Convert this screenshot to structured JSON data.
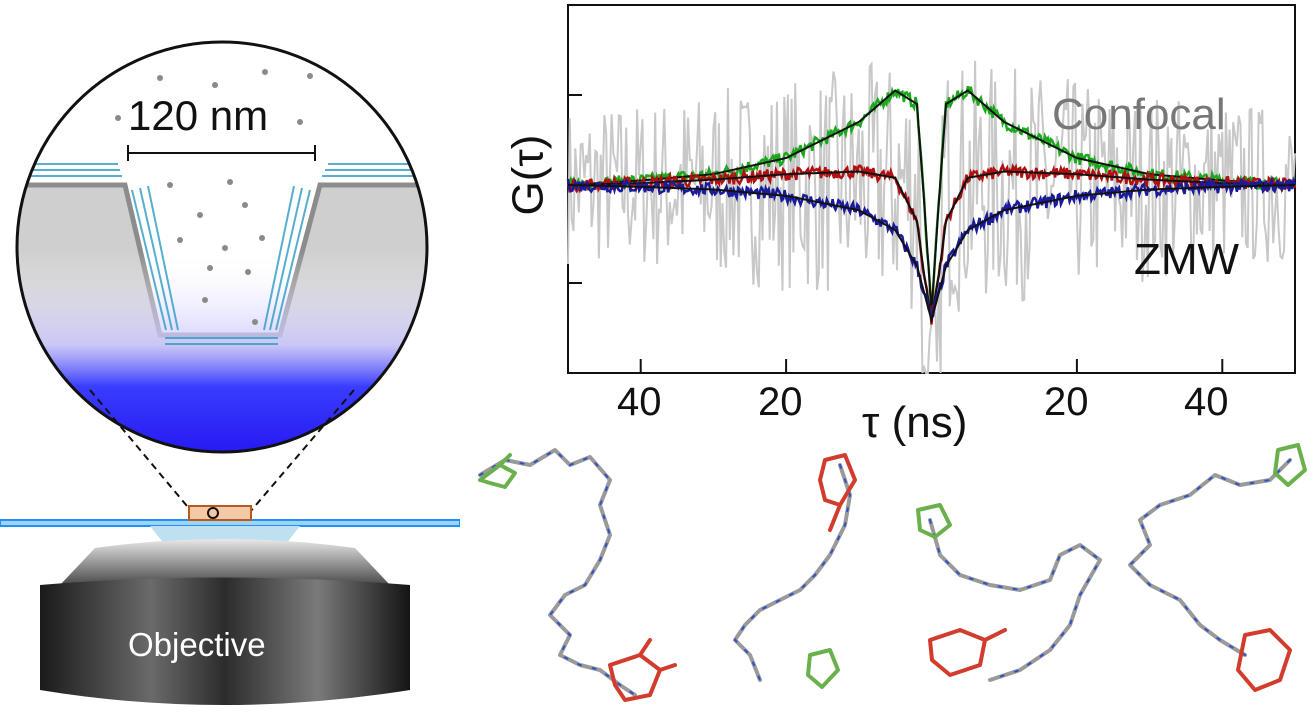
{
  "illustration": {
    "scale_label": "120 nm",
    "objective_label": "Objective",
    "colors": {
      "substrate": "#cfcfcf",
      "polymer_brush": "#3aa0c8",
      "excitation": "#2a1fff",
      "cover_glass": "#1e90ff"
    }
  },
  "chart_data": {
    "type": "line",
    "title": "",
    "xlabel": "τ (ns)",
    "ylabel": "G(τ)",
    "xlim": [
      -50,
      50
    ],
    "x_tick_labels": [
      "40",
      "20",
      "20",
      "40"
    ],
    "x_ticks": [
      -40,
      -20,
      20,
      40
    ],
    "grid": false,
    "annotations": [
      "Confocal",
      "ZMW"
    ],
    "series": [
      {
        "color": "#c8c8c8",
        "values": "noisy raw data (grey)"
      },
      {
        "color": "#1ca81c",
        "x": [
          -50,
          -40,
          -30,
          -20,
          -10,
          -5,
          -2,
          -1,
          0,
          1,
          2,
          5,
          10,
          20,
          30,
          40,
          50
        ],
        "values": [
          0.0,
          0.05,
          0.12,
          0.3,
          0.7,
          1.05,
          0.9,
          -0.2,
          -1.4,
          -0.2,
          0.9,
          1.05,
          0.7,
          0.3,
          0.12,
          0.05,
          0.0
        ]
      },
      {
        "color": "#b01010",
        "x": [
          -50,
          -40,
          -30,
          -20,
          -10,
          -5,
          -2,
          -1,
          0,
          1,
          2,
          5,
          10,
          20,
          30,
          40,
          50
        ],
        "values": [
          0.0,
          0.02,
          0.06,
          0.12,
          0.15,
          0.08,
          -0.4,
          -1.0,
          -1.5,
          -1.0,
          -0.4,
          0.08,
          0.15,
          0.12,
          0.06,
          0.02,
          0.0
        ]
      },
      {
        "color": "#1a1a9a",
        "x": [
          -50,
          -40,
          -30,
          -20,
          -10,
          -5,
          -2,
          -1,
          0,
          1,
          2,
          5,
          10,
          20,
          30,
          40,
          50
        ],
        "values": [
          0.0,
          -0.02,
          -0.05,
          -0.12,
          -0.28,
          -0.5,
          -0.9,
          -1.2,
          -1.5,
          -1.2,
          -0.9,
          -0.5,
          -0.28,
          -0.12,
          -0.05,
          -0.02,
          0.0
        ]
      }
    ]
  },
  "molecules": {
    "colors": {
      "backbone": "#9a9a9a",
      "donor_dye": "#6ab04c",
      "acceptor_dye": "#d23c2c",
      "nitrogen": "#3050c8",
      "oxygen": "#d23c2c"
    }
  }
}
